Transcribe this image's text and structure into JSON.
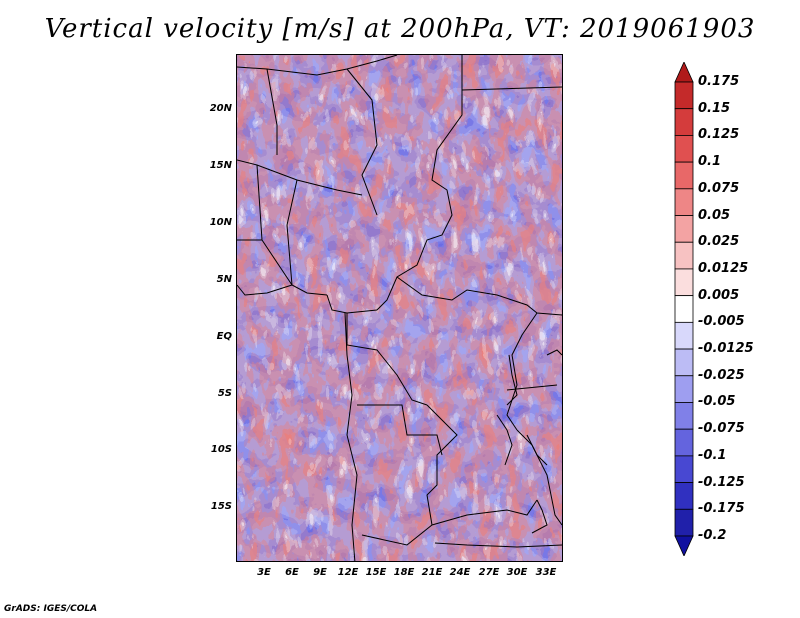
{
  "title": "Vertical velocity [m/s] at 200hPa, VT: 2019061903",
  "credit": "GrADS: IGES/COLA",
  "lat_labels": [
    "20N",
    "15N",
    "10N",
    "5N",
    "EQ",
    "5S",
    "10S",
    "15S"
  ],
  "lon_labels": [
    "3E",
    "6E",
    "9E",
    "12E",
    "15E",
    "18E",
    "21E",
    "24E",
    "27E",
    "30E",
    "33E"
  ],
  "colorbar": {
    "levels": [
      "0.175",
      "0.15",
      "0.125",
      "0.1",
      "0.075",
      "0.05",
      "0.025",
      "0.0125",
      "0.005",
      "-0.005",
      "-0.0125",
      "-0.025",
      "-0.05",
      "-0.075",
      "-0.1",
      "-0.125",
      "-0.175",
      "-0.2"
    ],
    "colors": [
      "#b01a1a",
      "#c42a2a",
      "#d43c3c",
      "#e05050",
      "#e86868",
      "#ee8686",
      "#f3a3a3",
      "#f7c2c2",
      "#fbdede",
      "#ffffff",
      "#d8d8fb",
      "#bcbcf5",
      "#9e9ef0",
      "#8080e8",
      "#6464de",
      "#4848d2",
      "#3030c0",
      "#2020aa",
      "#1010a0"
    ]
  }
}
